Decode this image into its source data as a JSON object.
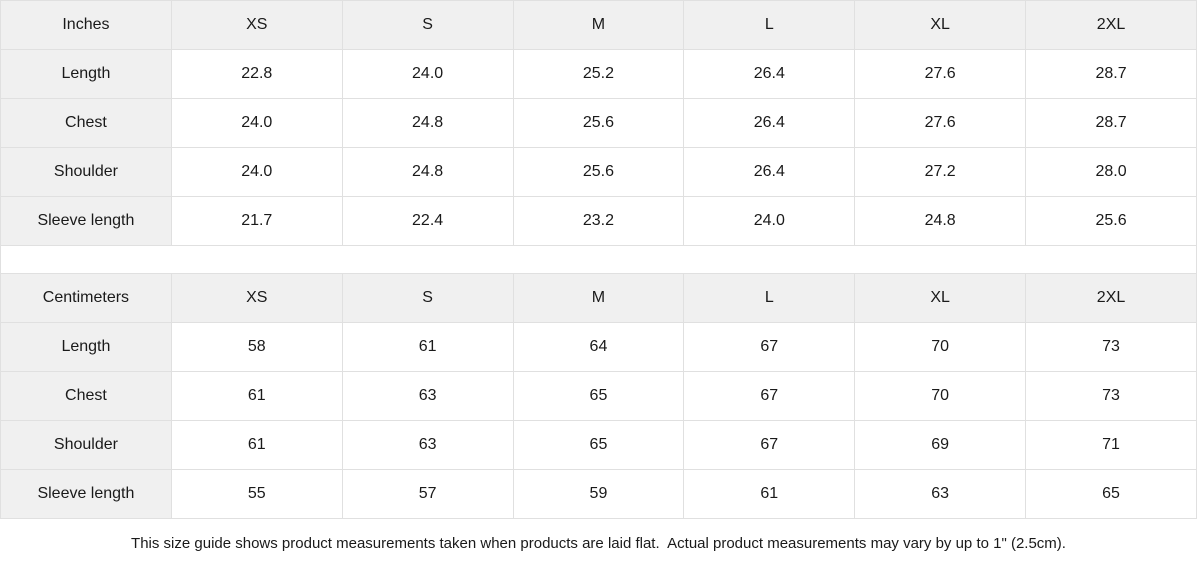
{
  "colors": {
    "bg": "#ffffff",
    "header_bg": "#f0f0f0",
    "border": "#e0e0e0",
    "text": "#1a1a1a"
  },
  "size_guide": {
    "sizes": [
      "XS",
      "S",
      "M",
      "L",
      "XL",
      "2XL"
    ],
    "tables": [
      {
        "unit_label": "Inches",
        "rows": [
          {
            "label": "Length",
            "values": [
              "22.8",
              "24.0",
              "25.2",
              "26.4",
              "27.6",
              "28.7"
            ]
          },
          {
            "label": "Chest",
            "values": [
              "24.0",
              "24.8",
              "25.6",
              "26.4",
              "27.6",
              "28.7"
            ]
          },
          {
            "label": "Shoulder",
            "values": [
              "24.0",
              "24.8",
              "25.6",
              "26.4",
              "27.2",
              "28.0"
            ]
          },
          {
            "label": "Sleeve length",
            "values": [
              "21.7",
              "22.4",
              "23.2",
              "24.0",
              "24.8",
              "25.6"
            ]
          }
        ]
      },
      {
        "unit_label": "Centimeters",
        "rows": [
          {
            "label": "Length",
            "values": [
              "58",
              "61",
              "64",
              "67",
              "70",
              "73"
            ]
          },
          {
            "label": "Chest",
            "values": [
              "61",
              "63",
              "65",
              "67",
              "70",
              "73"
            ]
          },
          {
            "label": "Shoulder",
            "values": [
              "61",
              "63",
              "65",
              "67",
              "69",
              "71"
            ]
          },
          {
            "label": "Sleeve length",
            "values": [
              "55",
              "57",
              "59",
              "61",
              "63",
              "65"
            ]
          }
        ]
      }
    ],
    "footnote": "This size guide shows product measurements taken when products are laid flat.  Actual product measurements may vary by up to 1\" (2.5cm)."
  }
}
